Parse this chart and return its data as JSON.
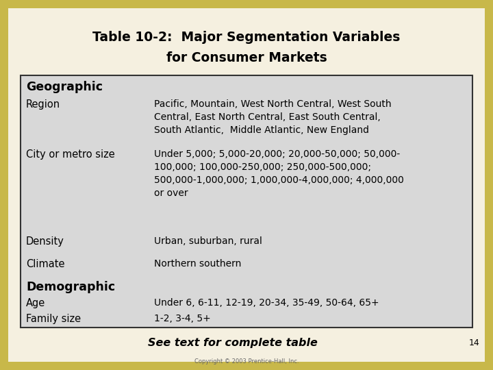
{
  "title_line1": "Table 10-2:  Major Segmentation Variables",
  "title_line2": "for Consumer Markets",
  "outer_bg_color": "#c8b84a",
  "inner_bg_color": "#f5f0e0",
  "table_bg_color": "#d8d8d8",
  "table_border_color": "#333333",
  "rows": [
    {
      "label": "Geographic",
      "value": "",
      "label_bold": true,
      "label_size": 12.5
    },
    {
      "label": "Region",
      "value": "Pacific, Mountain, West North Central, West South\nCentral, East North Central, East South Central,\nSouth Atlantic,  Middle Atlantic, New England",
      "label_bold": false,
      "label_size": 10.5
    },
    {
      "label": "City or metro size",
      "value": "Under 5,000; 5,000-20,000; 20,000-50,000; 50,000-\n100,000; 100,000-250,000; 250,000-500,000;\n500,000-1,000,000; 1,000,000-4,000,000; 4,000,000\nor over",
      "label_bold": false,
      "label_size": 10.5
    },
    {
      "label": "Density",
      "value": "Urban, suburban, rural",
      "label_bold": false,
      "label_size": 10.5
    },
    {
      "label": "Climate",
      "value": "Northern southern",
      "label_bold": false,
      "label_size": 10.5
    },
    {
      "label": "Demographic",
      "value": "",
      "label_bold": true,
      "label_size": 12.5
    },
    {
      "label": "Age",
      "value": "Under 6, 6-11, 12-19, 20-34, 35-49, 50-64, 65+",
      "label_bold": false,
      "label_size": 10.5
    },
    {
      "label": "Family size",
      "value": "1-2, 3-4, 5+",
      "label_bold": false,
      "label_size": 10.5
    }
  ],
  "footer_text": "See text for complete table",
  "copyright_text": "Copyright © 2003 Prentice-Hall, Inc.",
  "page_number": "14",
  "title_fontsize": 13.5
}
